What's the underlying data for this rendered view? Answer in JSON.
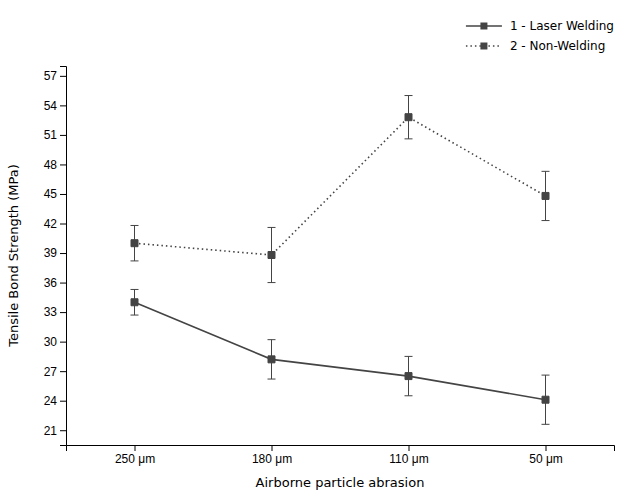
{
  "chart_data": {
    "type": "line",
    "x_label": "Airborne particle abrasion",
    "y_label": "Tensile Bond Strength (MPa)",
    "categories": [
      "250 μm",
      "180 μm",
      "110 μm",
      "50 μm"
    ],
    "series": [
      {
        "name": "1 - Laser Welding",
        "color": "#444444",
        "marker": "square",
        "line_style": "solid",
        "values": [
          34.0,
          28.2,
          26.5,
          24.1
        ],
        "errors": [
          1.3,
          2.0,
          2.0,
          2.5
        ]
      },
      {
        "name": "2 - Non-Welding",
        "color": "#444444",
        "marker": "square",
        "line_style": "dotted",
        "values": [
          40.0,
          38.8,
          52.8,
          44.8
        ],
        "errors": [
          1.8,
          2.8,
          2.2,
          2.5
        ]
      }
    ],
    "ylim": [
      19.5,
      58
    ],
    "yticks": [
      21,
      24,
      27,
      30,
      33,
      36,
      39,
      42,
      45,
      48,
      51,
      54,
      57
    ],
    "grid": false,
    "legend": "upper right"
  }
}
